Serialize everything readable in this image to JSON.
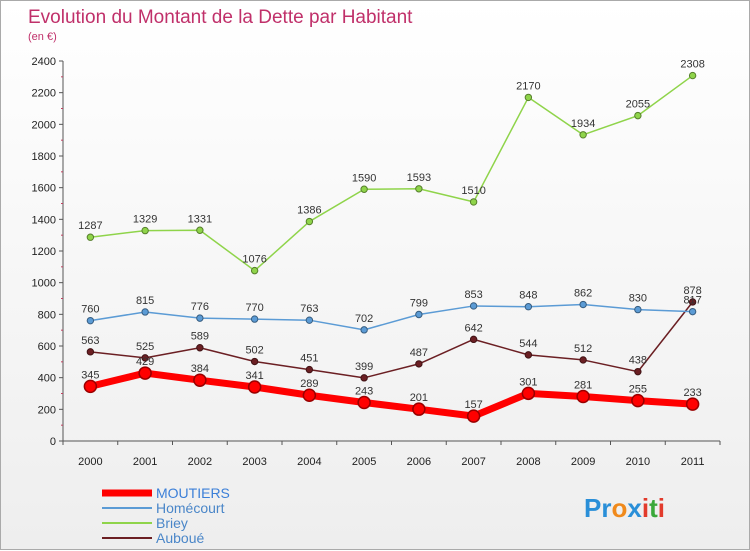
{
  "chart_data": {
    "type": "line",
    "title": "Evolution du Montant de la Dette par Habitant",
    "subtitle": "(en €)",
    "x": [
      "2000",
      "2001",
      "2002",
      "2003",
      "2004",
      "2005",
      "2006",
      "2007",
      "2008",
      "2009",
      "2010",
      "2011"
    ],
    "ylim": [
      0,
      2400
    ],
    "yticks": [
      0,
      200,
      400,
      600,
      800,
      1000,
      1200,
      1400,
      1600,
      1800,
      2000,
      2200,
      2400
    ],
    "grid": false,
    "legend_position": "bottom-left",
    "series": [
      {
        "name": "MOUTIERS",
        "color": "#ff0000",
        "values": [
          345,
          429,
          384,
          341,
          289,
          243,
          201,
          157,
          301,
          281,
          255,
          233
        ]
      },
      {
        "name": "Homécourt",
        "color": "#5b9bd5",
        "values": [
          760,
          815,
          776,
          770,
          763,
          702,
          799,
          853,
          848,
          862,
          830,
          817
        ]
      },
      {
        "name": "Briey",
        "color": "#8fd44a",
        "values": [
          1287,
          1329,
          1331,
          1076,
          1386,
          1590,
          1593,
          1510,
          2170,
          1934,
          2055,
          2308
        ]
      },
      {
        "name": "Auboué",
        "color": "#6b1f23",
        "values": [
          563,
          525,
          589,
          502,
          451,
          399,
          487,
          642,
          544,
          512,
          438,
          878
        ]
      }
    ]
  },
  "logo": {
    "text": "Proxiti",
    "letters": [
      "P",
      "r",
      "o",
      "x",
      "i",
      "t",
      "i"
    ],
    "colors": [
      "#2a8fd8",
      "#2a8fd8",
      "#f08a1c",
      "#2a8fd8",
      "#e23b2c",
      "#3aa83a",
      "#e23b2c"
    ]
  }
}
